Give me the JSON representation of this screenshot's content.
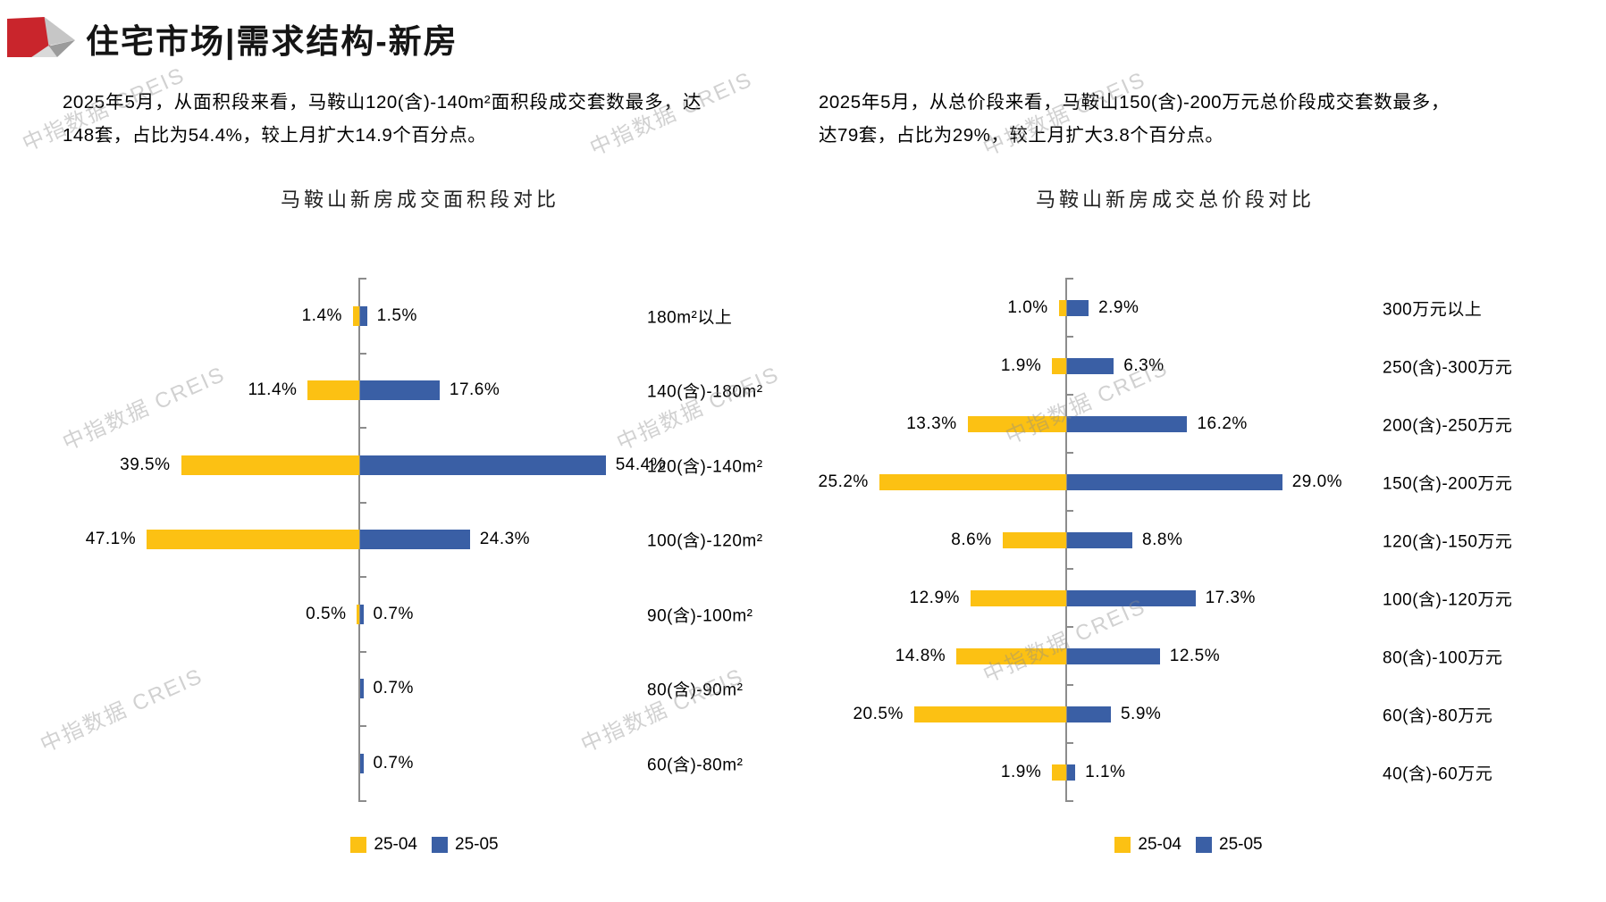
{
  "header": {
    "title": "住宅市场|需求结构-新房"
  },
  "intro": {
    "left": "2025年5月，从面积段来看，马鞍山120(含)-140m²面积段成交套数最多，达148套，占比为54.4%，较上月扩大14.9个百分点。",
    "right": "2025年5月，从总价段来看，马鞍山150(含)-200万元总价段成交套数最多，达79套，占比为29%，较上月扩大3.8个百分点。"
  },
  "watermark": "中指数据 CREIS",
  "colors": {
    "apr": "#FCC113",
    "may": "#3A5FA5",
    "axis": "#8C8C8C",
    "accent_red": "#C9252C"
  },
  "chart_data": [
    {
      "type": "bar",
      "orientation": "horizontal-diverging",
      "title": "马鞍山新房成交面积段对比",
      "value_unit": "%",
      "legend_position": "bottom",
      "categories": [
        "180m²以上",
        "140(含)-180m²",
        "120(含)-140m²",
        "100(含)-120m²",
        "90(含)-100m²",
        "80(含)-90m²",
        "60(含)-80m²"
      ],
      "series": [
        {
          "name": "25-04",
          "direction": "left",
          "values": [
            1.4,
            11.4,
            39.5,
            47.1,
            0.5,
            0,
            0
          ],
          "labels": [
            "1.4%",
            "11.4%",
            "39.5%",
            "47.1%",
            "0.5%",
            "",
            ""
          ]
        },
        {
          "name": "25-05",
          "direction": "right",
          "values": [
            1.5,
            17.6,
            54.4,
            24.3,
            0.7,
            0.7,
            0.7
          ],
          "labels": [
            "1.5%",
            "17.6%",
            "54.4%",
            "24.3%",
            "0.7%",
            "0.7%",
            "0.7%"
          ]
        }
      ]
    },
    {
      "type": "bar",
      "orientation": "horizontal-diverging",
      "title": "马鞍山新房成交总价段对比",
      "value_unit": "%",
      "legend_position": "bottom",
      "categories": [
        "300万元以上",
        "250(含)-300万元",
        "200(含)-250万元",
        "150(含)-200万元",
        "120(含)-150万元",
        "100(含)-120万元",
        "80(含)-100万元",
        "60(含)-80万元",
        "40(含)-60万元"
      ],
      "series": [
        {
          "name": "25-04",
          "direction": "left",
          "values": [
            1.0,
            1.9,
            13.3,
            25.2,
            8.6,
            12.9,
            14.8,
            20.5,
            1.9
          ],
          "labels": [
            "1.0%",
            "1.9%",
            "13.3%",
            "25.2%",
            "8.6%",
            "12.9%",
            "14.8%",
            "20.5%",
            "1.9%"
          ]
        },
        {
          "name": "25-05",
          "direction": "right",
          "values": [
            2.9,
            6.3,
            16.2,
            29.0,
            8.8,
            17.3,
            12.5,
            5.9,
            1.1
          ],
          "labels": [
            "2.9%",
            "6.3%",
            "16.2%",
            "29.0%",
            "8.8%",
            "17.3%",
            "12.5%",
            "5.9%",
            "1.1%"
          ]
        }
      ]
    }
  ]
}
